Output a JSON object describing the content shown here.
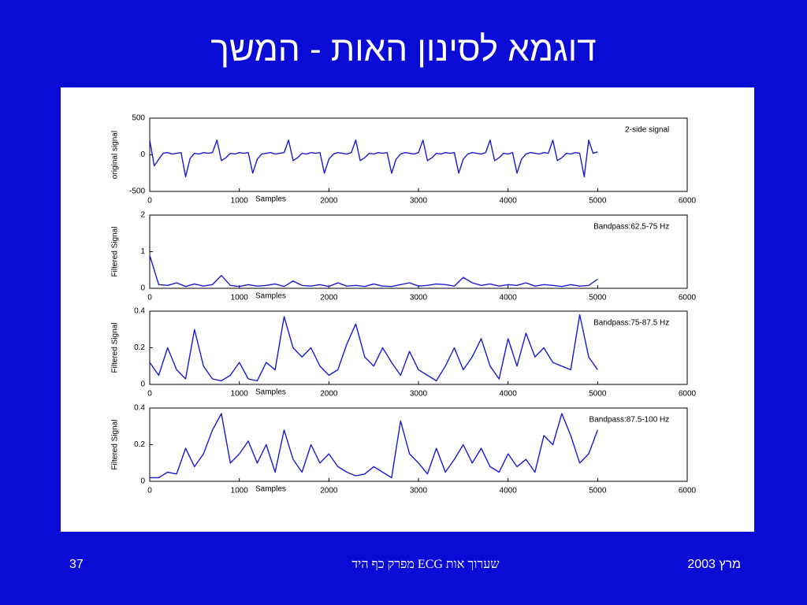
{
  "title": "דוגמא לסינון האות - המשך",
  "footer": {
    "page": "37",
    "center": "שערוך אות ECG מפרק כף היד",
    "date": "מרץ 2003"
  },
  "chart_data": [
    {
      "type": "line",
      "ylabel": "original signal",
      "xlabel": "Samples",
      "annotation": "2-side signal",
      "color": "#1a1ad0",
      "xlim": [
        0,
        6000
      ],
      "xticks": [
        0,
        1000,
        2000,
        3000,
        4000,
        5000,
        6000
      ],
      "ylim": [
        -500,
        500
      ],
      "yticks": [
        -500,
        0,
        500
      ],
      "x": [
        0,
        50,
        100,
        150,
        200,
        250,
        300,
        350,
        400,
        450,
        500,
        550,
        600,
        650,
        700,
        750,
        800,
        850,
        900,
        950,
        1000,
        1050,
        1100,
        1150,
        1200,
        1250,
        1300,
        1350,
        1400,
        1450,
        1500,
        1550,
        1600,
        1650,
        1700,
        1750,
        1800,
        1850,
        1900,
        1950,
        2000,
        2050,
        2100,
        2150,
        2200,
        2250,
        2300,
        2350,
        2400,
        2450,
        2500,
        2550,
        2600,
        2650,
        2700,
        2750,
        2800,
        2850,
        2900,
        2950,
        3000,
        3050,
        3100,
        3150,
        3200,
        3250,
        3300,
        3350,
        3400,
        3450,
        3500,
        3550,
        3600,
        3650,
        3700,
        3750,
        3800,
        3850,
        3900,
        3950,
        4000,
        4050,
        4100,
        4150,
        4200,
        4250,
        4300,
        4350,
        4400,
        4450,
        4500,
        4550,
        4600,
        4650,
        4700,
        4750,
        4800,
        4850,
        4900,
        4950,
        5000
      ],
      "values": [
        200,
        -150,
        -60,
        20,
        30,
        10,
        20,
        30,
        -300,
        -50,
        20,
        10,
        30,
        20,
        30,
        200,
        -80,
        -40,
        20,
        10,
        30,
        20,
        30,
        -250,
        -60,
        10,
        20,
        30,
        10,
        20,
        30,
        200,
        -80,
        -40,
        20,
        10,
        30,
        20,
        30,
        -250,
        -60,
        10,
        30,
        20,
        10,
        30,
        200,
        -80,
        -40,
        20,
        10,
        30,
        20,
        30,
        -250,
        -60,
        10,
        30,
        20,
        10,
        30,
        200,
        -80,
        -40,
        20,
        10,
        30,
        20,
        30,
        -250,
        -60,
        10,
        30,
        20,
        10,
        30,
        200,
        -80,
        -40,
        20,
        10,
        30,
        -250,
        -60,
        10,
        30,
        20,
        10,
        30,
        20,
        200,
        -80,
        -40,
        20,
        10,
        30,
        20,
        -300,
        200,
        20,
        40
      ]
    },
    {
      "type": "line",
      "ylabel": "Filtered Signal",
      "xlabel": "Samples",
      "annotation": "Bandpass:62.5-75 Hz",
      "color": "#1a1ad0",
      "xlim": [
        0,
        6000
      ],
      "xticks": [
        0,
        1000,
        2000,
        3000,
        4000,
        5000,
        6000
      ],
      "ylim": [
        0,
        2
      ],
      "yticks": [
        0,
        1,
        2
      ],
      "x": [
        0,
        100,
        200,
        300,
        400,
        500,
        600,
        700,
        800,
        900,
        1000,
        1100,
        1200,
        1300,
        1400,
        1500,
        1600,
        1700,
        1800,
        1900,
        2000,
        2100,
        2200,
        2300,
        2400,
        2500,
        2600,
        2700,
        2800,
        2900,
        3000,
        3100,
        3200,
        3300,
        3400,
        3500,
        3600,
        3700,
        3800,
        3900,
        4000,
        4100,
        4200,
        4300,
        4400,
        4500,
        4600,
        4700,
        4800,
        4900,
        5000
      ],
      "values": [
        0.9,
        0.1,
        0.08,
        0.15,
        0.05,
        0.12,
        0.06,
        0.1,
        0.35,
        0.08,
        0.05,
        0.1,
        0.06,
        0.08,
        0.12,
        0.05,
        0.2,
        0.08,
        0.06,
        0.1,
        0.05,
        0.15,
        0.06,
        0.08,
        0.05,
        0.12,
        0.06,
        0.05,
        0.1,
        0.15,
        0.06,
        0.08,
        0.12,
        0.1,
        0.06,
        0.3,
        0.15,
        0.08,
        0.12,
        0.06,
        0.1,
        0.08,
        0.15,
        0.06,
        0.1,
        0.08,
        0.05,
        0.1,
        0.06,
        0.08,
        0.25
      ]
    },
    {
      "type": "line",
      "ylabel": "Filtered Signal",
      "xlabel": "Samples",
      "annotation": "Bandpass:75-87.5 Hz",
      "color": "#1a1ad0",
      "xlim": [
        0,
        6000
      ],
      "xticks": [
        0,
        1000,
        2000,
        3000,
        4000,
        5000,
        6000
      ],
      "ylim": [
        0,
        0.4
      ],
      "yticks": [
        0,
        0.2,
        0.4
      ],
      "x": [
        0,
        100,
        200,
        300,
        400,
        500,
        600,
        700,
        800,
        900,
        1000,
        1100,
        1200,
        1300,
        1400,
        1500,
        1600,
        1700,
        1800,
        1900,
        2000,
        2100,
        2200,
        2300,
        2400,
        2500,
        2600,
        2700,
        2800,
        2900,
        3000,
        3100,
        3200,
        3300,
        3400,
        3500,
        3600,
        3700,
        3800,
        3900,
        4000,
        4100,
        4200,
        4300,
        4400,
        4500,
        4600,
        4700,
        4800,
        4900,
        5000
      ],
      "values": [
        0.12,
        0.05,
        0.2,
        0.08,
        0.03,
        0.3,
        0.1,
        0.03,
        0.02,
        0.05,
        0.12,
        0.03,
        0.02,
        0.12,
        0.08,
        0.37,
        0.2,
        0.15,
        0.2,
        0.1,
        0.05,
        0.08,
        0.22,
        0.33,
        0.15,
        0.1,
        0.2,
        0.12,
        0.05,
        0.18,
        0.08,
        0.05,
        0.02,
        0.1,
        0.2,
        0.08,
        0.15,
        0.25,
        0.1,
        0.03,
        0.25,
        0.1,
        0.28,
        0.15,
        0.2,
        0.12,
        0.1,
        0.08,
        0.38,
        0.15,
        0.08
      ]
    },
    {
      "type": "line",
      "ylabel": "Filtered Signal",
      "xlabel": "Samples",
      "annotation": "Bandpass:87.5-100 Hz",
      "color": "#1a1ad0",
      "xlim": [
        0,
        6000
      ],
      "xticks": [
        0,
        1000,
        2000,
        3000,
        4000,
        5000,
        6000
      ],
      "ylim": [
        0,
        0.4
      ],
      "yticks": [
        0,
        0.2,
        0.4
      ],
      "x": [
        0,
        100,
        200,
        300,
        400,
        500,
        600,
        700,
        800,
        900,
        1000,
        1100,
        1200,
        1300,
        1400,
        1500,
        1600,
        1700,
        1800,
        1900,
        2000,
        2100,
        2200,
        2300,
        2400,
        2500,
        2600,
        2700,
        2800,
        2900,
        3000,
        3100,
        3200,
        3300,
        3400,
        3500,
        3600,
        3700,
        3800,
        3900,
        4000,
        4100,
        4200,
        4300,
        4400,
        4500,
        4600,
        4700,
        4800,
        4900,
        5000
      ],
      "values": [
        0.02,
        0.02,
        0.05,
        0.04,
        0.18,
        0.08,
        0.15,
        0.28,
        0.37,
        0.1,
        0.15,
        0.22,
        0.1,
        0.2,
        0.05,
        0.28,
        0.12,
        0.05,
        0.2,
        0.1,
        0.15,
        0.08,
        0.05,
        0.03,
        0.04,
        0.08,
        0.05,
        0.02,
        0.33,
        0.15,
        0.1,
        0.04,
        0.18,
        0.05,
        0.12,
        0.2,
        0.1,
        0.18,
        0.08,
        0.05,
        0.15,
        0.08,
        0.12,
        0.05,
        0.25,
        0.2,
        0.37,
        0.25,
        0.1,
        0.15,
        0.28
      ]
    }
  ]
}
